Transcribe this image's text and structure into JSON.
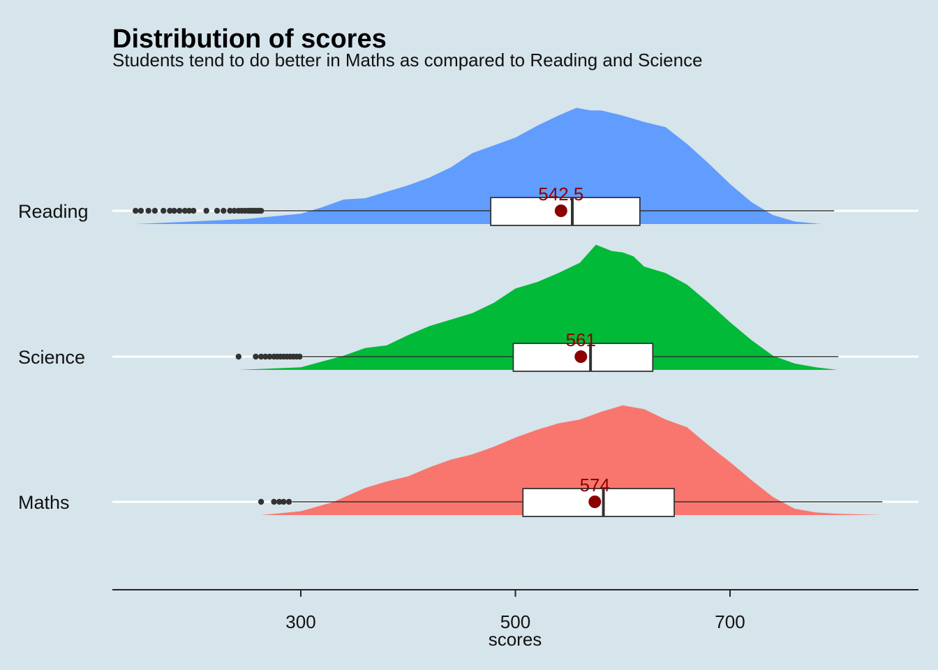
{
  "chart_data": {
    "type": "raincloud",
    "title": "Distribution of scores",
    "subtitle": "Students tend to do better in Maths as compared to Reading and Science",
    "xlabel": "scores",
    "ylabel": "",
    "xlim": [
      112,
      865
    ],
    "xticks": [
      300,
      500,
      700
    ],
    "grid": "horizontal lines at categories",
    "legend": "none",
    "colors": {
      "background": "#d6e4eb",
      "mean_point": "#8b0000",
      "box_fill": "#ffffff",
      "box_line": "#333333",
      "gridline": "#ffffff"
    },
    "series": [
      {
        "category": "Reading",
        "color": "#619cff",
        "box": {
          "min": 265,
          "q1": 477,
          "median": 553,
          "q3": 616,
          "max": 797
        },
        "mean": 542.5,
        "mean_label": "542.5",
        "outliers": [
          146,
          151,
          158,
          164,
          172,
          178,
          182,
          187,
          192,
          196,
          200,
          212,
          222,
          228,
          234,
          238,
          242,
          245,
          248,
          251,
          253,
          255,
          257,
          259,
          261,
          263
        ],
        "density": {
          "x": [
            146,
            200,
            250,
            300,
            320,
            340,
            360,
            380,
            400,
            420,
            440,
            460,
            480,
            500,
            520,
            540,
            557,
            570,
            580,
            600,
            620,
            640,
            660,
            680,
            700,
            720,
            740,
            760,
            785
          ],
          "y": [
            0.0,
            0.02,
            0.04,
            0.08,
            0.13,
            0.19,
            0.2,
            0.25,
            0.3,
            0.36,
            0.44,
            0.55,
            0.61,
            0.67,
            0.76,
            0.84,
            0.9,
            0.88,
            0.88,
            0.84,
            0.79,
            0.75,
            0.62,
            0.47,
            0.31,
            0.17,
            0.07,
            0.02,
            0.0
          ]
        }
      },
      {
        "category": "Science",
        "color": "#00ba38",
        "box": {
          "min": 302,
          "q1": 498,
          "median": 570,
          "q3": 628,
          "max": 801
        },
        "mean": 561,
        "mean_label": "561",
        "outliers": [
          242,
          258,
          263,
          267,
          271,
          275,
          278,
          281,
          284,
          287,
          290,
          293,
          296,
          299
        ],
        "density": {
          "x": [
            242,
            300,
            340,
            360,
            380,
            400,
            420,
            440,
            460,
            480,
            500,
            520,
            540,
            560,
            575,
            590,
            600,
            610,
            620,
            640,
            660,
            680,
            700,
            720,
            740,
            760,
            780,
            800
          ],
          "y": [
            0.0,
            0.02,
            0.11,
            0.17,
            0.19,
            0.27,
            0.34,
            0.39,
            0.44,
            0.52,
            0.63,
            0.68,
            0.75,
            0.83,
            0.97,
            0.92,
            0.91,
            0.88,
            0.8,
            0.75,
            0.66,
            0.52,
            0.37,
            0.23,
            0.11,
            0.05,
            0.02,
            0.0
          ]
        }
      },
      {
        "category": "Maths",
        "color": "#f8766d",
        "box": {
          "min": 292,
          "q1": 507,
          "median": 582,
          "q3": 648,
          "max": 842
        },
        "mean": 574,
        "mean_label": "574",
        "outliers": [
          263,
          275,
          280,
          284,
          289
        ],
        "density": {
          "x": [
            263,
            300,
            330,
            360,
            380,
            400,
            420,
            440,
            460,
            480,
            500,
            520,
            540,
            560,
            580,
            600,
            620,
            640,
            660,
            680,
            700,
            720,
            740,
            760,
            780,
            800,
            842
          ],
          "y": [
            0.0,
            0.03,
            0.1,
            0.21,
            0.26,
            0.3,
            0.37,
            0.43,
            0.47,
            0.53,
            0.6,
            0.66,
            0.71,
            0.74,
            0.8,
            0.85,
            0.82,
            0.74,
            0.68,
            0.54,
            0.41,
            0.27,
            0.14,
            0.05,
            0.02,
            0.01,
            0.0
          ]
        }
      }
    ]
  }
}
